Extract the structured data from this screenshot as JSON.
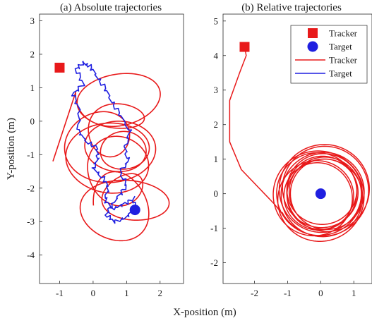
{
  "figure": {
    "shared_xlabel": "X-position (m)",
    "shared_ylabel": "Y-position (m)"
  },
  "colors": {
    "tracker": "#e8191a",
    "target": "#1f1fe0",
    "axis": "#262626"
  },
  "chart_data": [
    {
      "type": "line",
      "title": "(a) Absolute trajectories",
      "xlabel": "X-position (m)",
      "ylabel": "Y-position (m)",
      "xlim": [
        -1.6,
        2.7
      ],
      "ylim": [
        -4.85,
        3.2
      ],
      "xticks": [
        -1,
        0,
        1,
        2
      ],
      "yticks": [
        3,
        2,
        1,
        0,
        -1,
        -2,
        -3,
        -4
      ],
      "grid": false,
      "series": [
        {
          "name": "Tracker",
          "kind": "spiral",
          "color": "#e8191a",
          "start": [
            -1.2,
            -1.2
          ],
          "center_start": [
            0.45,
            0.55
          ],
          "center_end": [
            0.9,
            -2.6
          ],
          "radius_start": [
            1.35,
            1.0
          ],
          "radius_end": [
            1.3,
            1.05
          ],
          "turns": 10
        },
        {
          "name": "Target",
          "kind": "path",
          "color": "#1f1fe0",
          "points": [
            [
              -0.3,
              1.75
            ],
            [
              -0.5,
              1.55
            ],
            [
              -0.3,
              1.1
            ],
            [
              -0.6,
              0.8
            ],
            [
              -0.4,
              0.3
            ],
            [
              -0.45,
              -0.3
            ],
            [
              -0.2,
              -0.6
            ],
            [
              0.1,
              -0.8
            ],
            [
              0.15,
              -1.1
            ],
            [
              0.0,
              -1.4
            ],
            [
              0.3,
              -1.7
            ],
            [
              0.45,
              -2.0
            ],
            [
              0.35,
              -2.4
            ],
            [
              0.6,
              -2.6
            ],
            [
              0.9,
              -2.5
            ],
            [
              1.2,
              -2.3
            ],
            [
              1.25,
              -2.65
            ],
            [
              0.95,
              -2.9
            ],
            [
              0.6,
              -3.0
            ],
            [
              0.4,
              -2.8
            ],
            [
              0.55,
              -2.5
            ],
            [
              0.8,
              -2.2
            ],
            [
              1.0,
              -1.9
            ],
            [
              0.8,
              -1.5
            ],
            [
              1.05,
              -1.2
            ],
            [
              0.95,
              -0.8
            ],
            [
              1.1,
              -0.3
            ],
            [
              0.8,
              0.2
            ],
            [
              0.55,
              0.6
            ],
            [
              0.35,
              1.0
            ],
            [
              0.1,
              1.35
            ],
            [
              -0.1,
              1.65
            ],
            [
              -0.3,
              1.75
            ]
          ]
        }
      ],
      "markers": [
        {
          "name": "Tracker",
          "shape": "square",
          "x": -1.0,
          "y": 1.6,
          "color": "#e8191a"
        },
        {
          "name": "Target",
          "shape": "circle",
          "x": 1.25,
          "y": -2.65,
          "color": "#1f1fe0"
        }
      ]
    },
    {
      "type": "line",
      "title": "(b) Relative trajectories",
      "xlabel": "X-position (m)",
      "ylabel": "",
      "xlim": [
        -2.95,
        1.55
      ],
      "ylim": [
        -2.6,
        5.2
      ],
      "xticks": [
        -2,
        -1,
        0,
        1
      ],
      "yticks": [
        5,
        4,
        3,
        2,
        1,
        0,
        -1,
        -2
      ],
      "grid": false,
      "legend": {
        "position": "top-right",
        "entries": [
          {
            "label": "Tracker",
            "shape": "square",
            "color": "#e8191a"
          },
          {
            "label": "Target",
            "shape": "circle",
            "color": "#1f1fe0"
          },
          {
            "label": "Tracker",
            "shape": "line",
            "color": "#e8191a"
          },
          {
            "label": "Target",
            "shape": "line",
            "color": "#1f1fe0"
          }
        ]
      },
      "series": [
        {
          "name": "Tracker",
          "kind": "approach_orbit",
          "color": "#e8191a",
          "start": [
            -2.3,
            4.25
          ],
          "approach": [
            [
              -2.3,
              4.25
            ],
            [
              -2.25,
              4.0
            ],
            [
              -2.45,
              3.5
            ],
            [
              -2.75,
              2.7
            ],
            [
              -2.75,
              1.5
            ],
            [
              -2.4,
              0.7
            ],
            [
              -1.9,
              0.2
            ],
            [
              -1.4,
              -0.3
            ],
            [
              -1.15,
              -0.6
            ]
          ],
          "orbit_center": [
            0.0,
            0.0
          ],
          "radius_min": 0.95,
          "radius_max": 1.35,
          "turns": 12
        }
      ],
      "markers": [
        {
          "name": "Tracker",
          "shape": "square",
          "x": -2.3,
          "y": 4.25,
          "color": "#e8191a"
        },
        {
          "name": "Target",
          "shape": "circle",
          "x": 0.0,
          "y": 0.0,
          "color": "#1f1fe0"
        }
      ]
    }
  ]
}
